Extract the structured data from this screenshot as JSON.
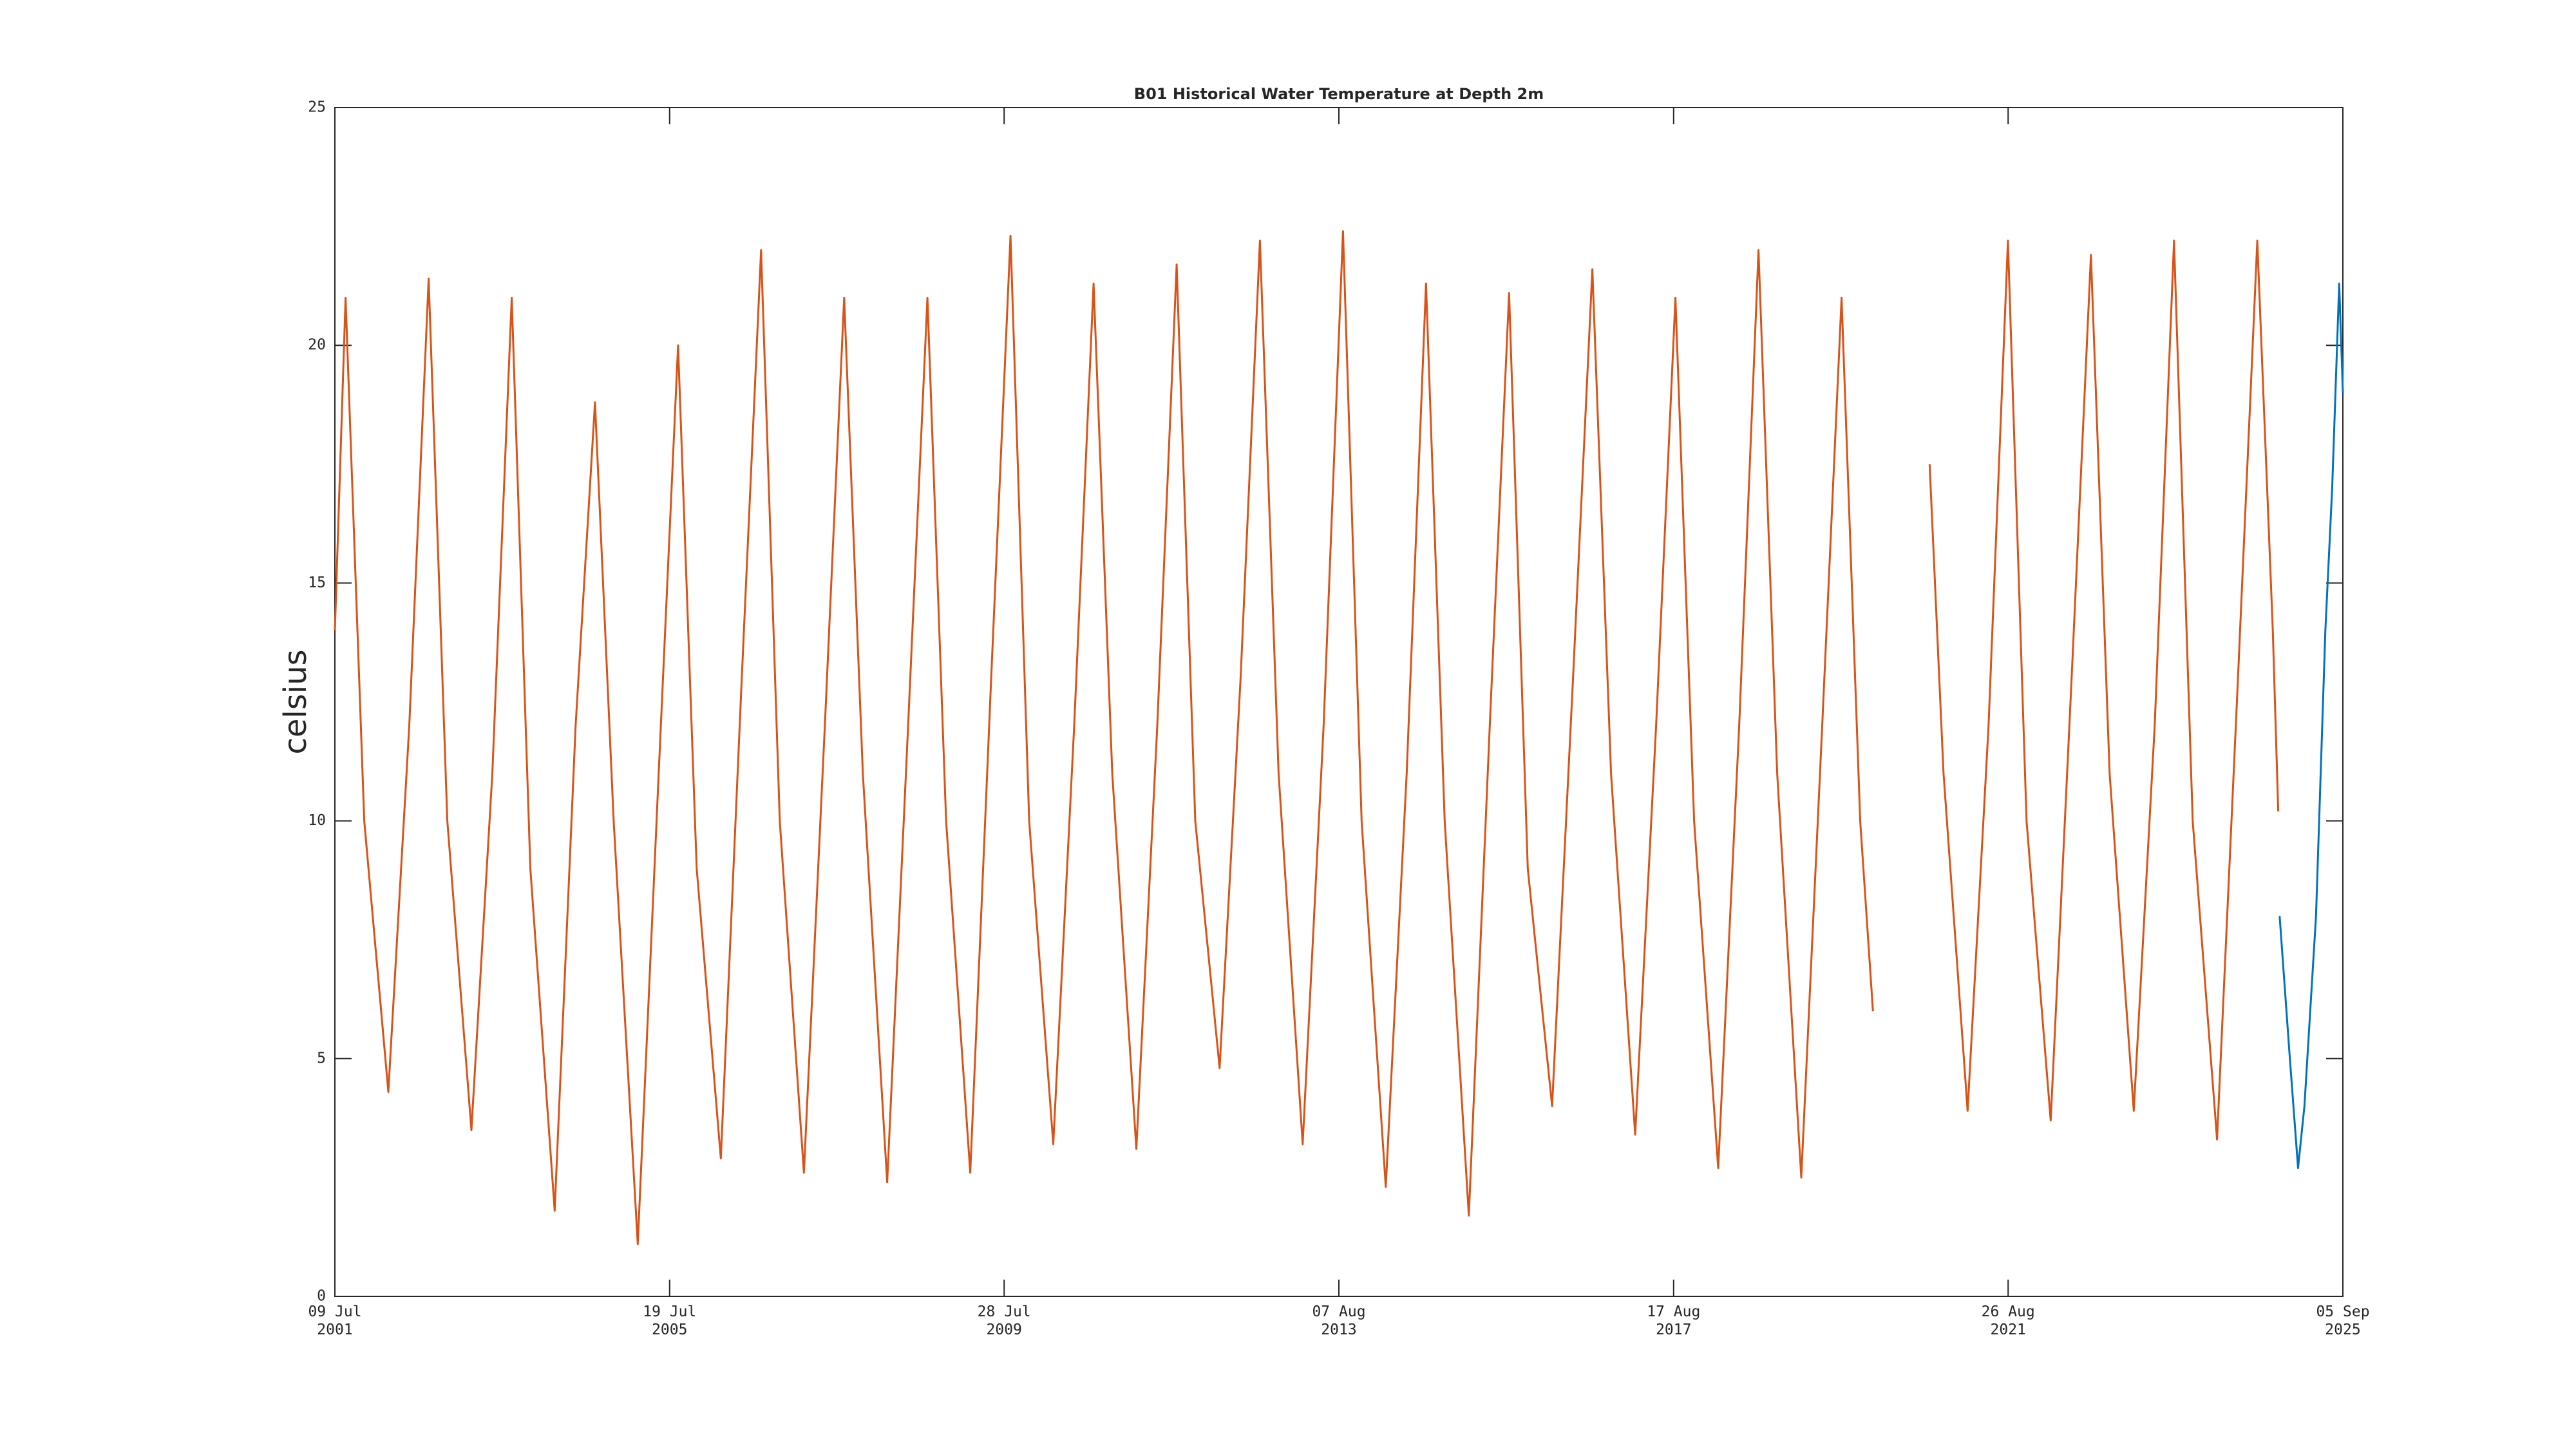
{
  "chart_data": {
    "type": "line",
    "title": "B01 Historical Water Temperature at Depth 2m",
    "y_label": "celsius",
    "xlim": [
      "2001-07-09",
      "2025-09-05"
    ],
    "xticks": [
      {
        "value": "2001-07-09",
        "label": "09 Jul\n2001"
      },
      {
        "value": "2005-07-19",
        "label": "19 Jul\n2005"
      },
      {
        "value": "2009-07-28",
        "label": "28 Jul\n2009"
      },
      {
        "value": "2013-08-07",
        "label": "07 Aug\n2013"
      },
      {
        "value": "2017-08-17",
        "label": "17 Aug\n2017"
      },
      {
        "value": "2021-08-26",
        "label": "26 Aug\n2021"
      },
      {
        "value": "2025-09-05",
        "label": "05 Sep\n2025"
      }
    ],
    "ylim": [
      0,
      25
    ],
    "yticks": [
      0,
      5,
      10,
      15,
      20,
      25
    ],
    "grid": false,
    "series": [
      {
        "color": "#d95319",
        "x": [
          "2001-07-09",
          "2001-08-25",
          "2001-11-15",
          "2002-03-01",
          "2002-06-01",
          "2002-08-25",
          "2002-11-15",
          "2003-03-01",
          "2003-06-01",
          "2003-08-25",
          "2003-11-15",
          "2004-03-01",
          "2004-06-01",
          "2004-08-25",
          "2004-11-15",
          "2005-03-01",
          "2005-06-01",
          "2005-08-25",
          "2005-11-15",
          "2006-03-01",
          "2006-06-01",
          "2006-08-25",
          "2006-11-15",
          "2007-03-01",
          "2007-06-01",
          "2007-08-25",
          "2007-11-15",
          "2008-03-01",
          "2008-06-01",
          "2008-08-25",
          "2008-11-15",
          "2009-03-01",
          "2009-06-01",
          "2009-08-25",
          "2009-11-15",
          "2010-03-01",
          "2010-06-01",
          "2010-08-25",
          "2010-11-15",
          "2011-03-01",
          "2011-06-01",
          "2011-08-25",
          "2011-11-15",
          "2012-03-01",
          "2012-06-01",
          "2012-08-25",
          "2012-11-15",
          "2013-03-01",
          "2013-06-01",
          "2013-08-25",
          "2013-11-15",
          "2014-03-01",
          "2014-06-01",
          "2014-08-25",
          "2014-11-15",
          "2015-03-01",
          "2015-06-01",
          "2015-08-25",
          "2015-11-15",
          "2016-03-01",
          "2016-06-01",
          "2016-08-25",
          "2016-11-15",
          "2017-03-01",
          "2017-06-01",
          "2017-08-25",
          "2017-11-15",
          "2018-03-01",
          "2018-06-01",
          "2018-08-25",
          "2018-11-15",
          "2019-03-01",
          "2019-06-01",
          "2019-08-25",
          "2019-11-15",
          "2020-01-10",
          "2020-05-01",
          "2020-09-15",
          "2020-11-15",
          "2021-03-01",
          "2021-06-01",
          "2021-08-25",
          "2021-11-15",
          "2022-03-01",
          "2022-06-01",
          "2022-08-25",
          "2022-11-15",
          "2023-03-01",
          "2023-06-01",
          "2023-08-25",
          "2023-11-15",
          "2024-03-01",
          "2024-06-01",
          "2024-08-25",
          "2024-11-01",
          "2024-11-25"
        ],
        "values": [
          14,
          21,
          10,
          4.3,
          12,
          21.4,
          10,
          3.5,
          11,
          21,
          9,
          1.8,
          12,
          18.8,
          10,
          1.1,
          11,
          20,
          9,
          2.9,
          13,
          22,
          10,
          2.6,
          12,
          21,
          11,
          2.4,
          12,
          21,
          10,
          2.6,
          13,
          22.3,
          10,
          3.2,
          12,
          21.3,
          11,
          3.1,
          12,
          21.7,
          10,
          4.8,
          13,
          22.2,
          11,
          3.2,
          12,
          22.4,
          10,
          2.3,
          11,
          21.3,
          10,
          1.7,
          12,
          21.1,
          9,
          4,
          13,
          21.6,
          11,
          3.4,
          12,
          21,
          10,
          2.7,
          12,
          22,
          11,
          2.5,
          12,
          21,
          10,
          6,
          null,
          17.5,
          11,
          3.9,
          12,
          22.2,
          10,
          3.7,
          13,
          21.9,
          11,
          3.9,
          12,
          22.2,
          10,
          3.3,
          13,
          22.2,
          14,
          10.2
        ]
      },
      {
        "color": "#0072bd",
        "x": [
          "2024-12-01",
          "2025-01-15",
          "2025-02-20",
          "2025-03-20",
          "2025-05-10",
          "2025-06-20",
          "2025-07-20",
          "2025-08-20",
          "2025-09-05"
        ],
        "values": [
          8,
          5,
          2.7,
          4,
          8,
          14,
          17,
          21.3,
          19
        ]
      }
    ]
  }
}
